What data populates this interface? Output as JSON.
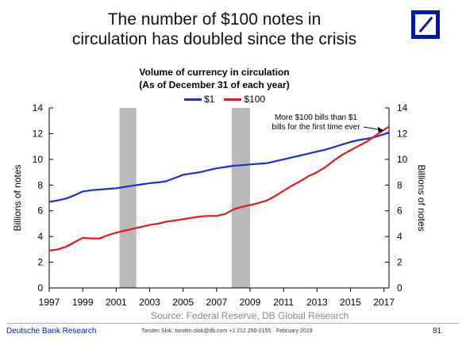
{
  "header": {
    "title_line1": "The number of $100 notes in",
    "title_line2": "circulation has doubled since the crisis"
  },
  "brand": {
    "color": "#0018a8",
    "logo": "deutsche-bank-logo"
  },
  "chart_data": {
    "type": "line",
    "title_line1": "Volume of currency in circulation",
    "title_line2": "(As of December 31 of each year)",
    "ylabel_left": "Billions of notes",
    "ylabel_right": "Billions of notes",
    "xlim": [
      1997,
      2017.3
    ],
    "ylim": [
      0,
      14
    ],
    "x_ticks": [
      "1997",
      "1999",
      "2001",
      "2003",
      "2005",
      "2007",
      "2009",
      "2011",
      "2013",
      "2015",
      "2017"
    ],
    "y_ticks": [
      "0",
      "2",
      "4",
      "6",
      "8",
      "10",
      "12",
      "14"
    ],
    "grid": false,
    "legend_position": "top",
    "recessions": [
      [
        2001.2,
        2002.2
      ],
      [
        2007.9,
        2009.0
      ]
    ],
    "recession_color": "#b9b9b9",
    "series": [
      {
        "name": "$1",
        "color": "#1c2fc9",
        "x": [
          1997,
          1997.5,
          1998,
          1998.5,
          1999,
          1999.5,
          2000,
          2000.5,
          2001,
          2001.5,
          2002,
          2002.5,
          2003,
          2003.5,
          2004,
          2004.5,
          2005,
          2005.5,
          2006,
          2006.5,
          2007,
          2007.5,
          2008,
          2008.5,
          2009,
          2009.5,
          2010,
          2010.5,
          2011,
          2011.5,
          2012,
          2012.5,
          2013,
          2013.5,
          2014,
          2014.5,
          2015,
          2015.5,
          2016,
          2016.5,
          2017,
          2017.3
        ],
        "values": [
          6.7,
          6.8,
          6.95,
          7.2,
          7.5,
          7.6,
          7.65,
          7.7,
          7.75,
          7.85,
          7.95,
          8.05,
          8.15,
          8.2,
          8.3,
          8.55,
          8.8,
          8.9,
          9.0,
          9.15,
          9.3,
          9.4,
          9.5,
          9.55,
          9.6,
          9.65,
          9.7,
          9.85,
          10.0,
          10.15,
          10.3,
          10.45,
          10.6,
          10.75,
          10.95,
          11.15,
          11.35,
          11.5,
          11.6,
          11.75,
          11.95,
          12.1
        ]
      },
      {
        "name": "$100",
        "color": "#e21b1b",
        "x": [
          1997,
          1997.5,
          1998,
          1998.5,
          1999,
          1999.5,
          2000,
          2000.5,
          2001,
          2001.5,
          2002,
          2002.5,
          2003,
          2003.5,
          2004,
          2004.5,
          2005,
          2005.5,
          2006,
          2006.5,
          2007,
          2007.5,
          2008,
          2008.5,
          2009,
          2009.5,
          2010,
          2010.5,
          2011,
          2011.5,
          2012,
          2012.5,
          2013,
          2013.5,
          2014,
          2014.5,
          2015,
          2015.5,
          2016,
          2016.5,
          2017,
          2017.3
        ],
        "values": [
          2.9,
          3.0,
          3.2,
          3.55,
          3.9,
          3.85,
          3.85,
          4.1,
          4.3,
          4.45,
          4.6,
          4.75,
          4.9,
          5.0,
          5.15,
          5.25,
          5.35,
          5.45,
          5.55,
          5.6,
          5.6,
          5.75,
          6.1,
          6.3,
          6.45,
          6.6,
          6.8,
          7.15,
          7.55,
          7.95,
          8.3,
          8.7,
          9.0,
          9.4,
          9.9,
          10.35,
          10.7,
          11.05,
          11.4,
          11.85,
          12.3,
          12.55
        ]
      }
    ],
    "annotation": {
      "line1": "More $100 bills than $1",
      "line2": "bills for the first time ever",
      "target_x": 2017,
      "target_y": 12.1
    }
  },
  "source": "Source: Federal Reserve, DB Global Research",
  "footer": {
    "org": "Deutsche Bank Research",
    "author": "Torsten Slok, torsten.slok@db.com +1 212 250-2155",
    "date": "February 2019",
    "page": "81"
  }
}
